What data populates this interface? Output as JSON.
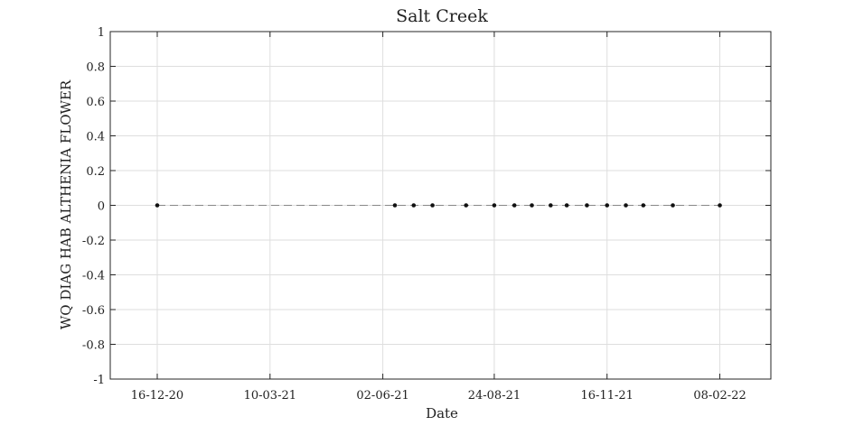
{
  "chart_data": {
    "type": "scatter",
    "title": "Salt Creek",
    "xlabel": "Date",
    "ylabel": "WQ DIAG HAB ALTHENIA FLOWER",
    "x_tick_labels": [
      "16-12-20",
      "10-03-21",
      "02-06-21",
      "24-08-21",
      "16-11-21",
      "08-02-22"
    ],
    "x_ticks": [
      "2020-12-16",
      "2021-03-10",
      "2021-06-02",
      "2021-08-24",
      "2021-11-16",
      "2022-02-08"
    ],
    "xlim": [
      "2020-11-11",
      "2022-03-18"
    ],
    "y_tick_labels": [
      "1",
      "0.8",
      "0.6",
      "0.4",
      "0.2",
      "0",
      "-0.2",
      "-0.4",
      "-0.6",
      "-0.8",
      "-1"
    ],
    "ylim": [
      -1,
      1
    ],
    "grid": true,
    "series": [
      {
        "x": [
          "2020-12-16",
          "2021-06-11",
          "2021-06-25",
          "2021-07-09",
          "2021-08-03",
          "2021-08-24",
          "2021-09-08",
          "2021-09-21",
          "2021-10-05",
          "2021-10-17",
          "2021-11-01",
          "2021-11-16",
          "2021-11-30",
          "2021-12-13",
          "2022-01-04",
          "2022-02-08"
        ],
        "y": [
          0,
          0,
          0,
          0,
          0,
          0,
          0,
          0,
          0,
          0,
          0,
          0,
          0,
          0,
          0,
          0
        ],
        "marker_color": "#111111",
        "line_color": "#888888"
      }
    ]
  }
}
